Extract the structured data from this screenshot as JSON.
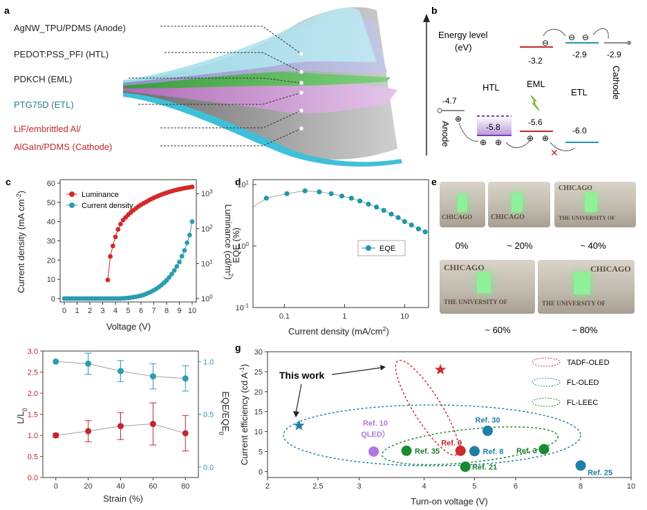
{
  "panels": {
    "a": {
      "letter": "a",
      "layers": [
        {
          "text": "AgNW_TPU/PDMS (Anode)",
          "color": "#222222"
        },
        {
          "text": "PEDOT:PSS_PFI (HTL)",
          "color": "#222222"
        },
        {
          "text": "PDKCH (EML)",
          "color": "#222222"
        },
        {
          "text": "PTG75D (ETL)",
          "color": "#2a7a8a"
        },
        {
          "text": "LiF/embrittled Al/",
          "color": "#c0272d"
        },
        {
          "text": "AlGaIn/PDMS (Cathode)",
          "color": "#c0272d"
        }
      ]
    },
    "b": {
      "letter": "b",
      "title": "Energy level",
      "unit": "(eV)",
      "layer_names": [
        "HTL",
        "EML",
        "ETL",
        "Anode",
        "Cathode"
      ],
      "levels": {
        "anode": "-4.7",
        "htl_lumo": "-5.8",
        "eml_lumo": "-3.2",
        "eml_homo": "-5.6",
        "etl_lumo": "-2.9",
        "etl_homo": "-6.0",
        "cathode": "-2.9"
      },
      "carrier_symbols": {
        "electron": "⊖",
        "hole": "⊕",
        "blocked": "✕"
      }
    },
    "c": {
      "letter": "c",
      "xlabel": "Voltage (V)",
      "ylabel_left": "Current density (mA cm",
      "ylabel_left_sup": "-2",
      "ylabel_left_end": ")",
      "ylabel_right": "Luminance (cd/m",
      "ylabel_right_sup": "2",
      "ylabel_right_end": ")",
      "x_ticks": [
        "0",
        "1",
        "2",
        "3",
        "4",
        "5",
        "6",
        "7",
        "8",
        "9",
        "10"
      ],
      "y_left_ticks": [
        "0",
        "10",
        "20",
        "30",
        "40",
        "50",
        "60"
      ],
      "y_right_ticks": [
        {
          "base": "10",
          "exp": "0"
        },
        {
          "base": "10",
          "exp": "1"
        },
        {
          "base": "10",
          "exp": "2"
        },
        {
          "base": "10",
          "exp": "3"
        }
      ],
      "legend": [
        "Luminance",
        "Current density"
      ]
    },
    "d": {
      "letter": "d",
      "xlabel": "Current density (mA/cm",
      "xlabel_sup": "2",
      "xlabel_end": ")",
      "ylabel": "EQE (%)",
      "x_ticks": [
        "0.1",
        "1",
        "10"
      ],
      "y_ticks": [
        {
          "base": "10",
          "exp": "-1"
        },
        {
          "base": "10",
          "exp": "0"
        },
        {
          "base": "10",
          "exp": "1"
        }
      ],
      "legend": [
        "EQE"
      ]
    },
    "e": {
      "letter": "e",
      "strain_labels": [
        "0%",
        "~ 20%",
        "~ 40%",
        "~ 60%",
        "~ 80%"
      ],
      "photo_text": [
        "CHICAGO",
        "THE UNIVERSITY OF"
      ]
    },
    "f": {
      "xlabel": "Strain (%)",
      "ylabel_left": "L/L",
      "ylabel_left_sub": "0",
      "ylabel_right": "EQE/EQE",
      "ylabel_right_sub": "0",
      "x_ticks": [
        "0",
        "20",
        "40",
        "60",
        "80"
      ],
      "y_left_ticks": [
        "0.0",
        "0.5",
        "1.0",
        "1.5",
        "2.0",
        "2.5",
        "3.0"
      ],
      "y_right_ticks": [
        "0.0",
        "0.5",
        "1.0"
      ]
    },
    "g": {
      "letter": "g",
      "xlabel": "Turn-on voltage (V)",
      "ylabel": "Current efficiency (cd A",
      "ylabel_sup": "-1",
      "ylabel_end": ")",
      "x_ticks": [
        "2",
        "2.5",
        "3",
        "4",
        "5",
        "6",
        "8",
        "10"
      ],
      "y_ticks": [
        "0",
        "5",
        "10",
        "15",
        "20",
        "25",
        "30"
      ],
      "legend": [
        "TADF-OLED",
        "FL-OLED",
        "FL-LEEC"
      ],
      "this_work": "This work",
      "qled_label": [
        "Ref. 10",
        "QLED）"
      ]
    }
  },
  "colors": {
    "luminance": "#d12a2a",
    "current": "#2a9cb0",
    "eqe": "#1f97aa",
    "tadf": "#d12a2a",
    "fl_oled": "#1f7fa8",
    "fl_leec": "#1a8a2e",
    "qled": "#b078e0",
    "htl_level": "#7a3fb0",
    "eml_level": "#c0272d",
    "etl_level": "#1f97aa",
    "cathode_level": "#888888"
  },
  "chart_data": [
    {
      "panel": "c",
      "type": "scatter",
      "series": [
        {
          "name": "Luminance",
          "axis": "right (log, cd/m2)",
          "x": [
            3.4,
            3.6,
            3.8,
            4.0,
            4.2,
            4.4,
            4.6,
            4.8,
            5.0,
            5.2,
            5.4,
            5.6,
            5.8,
            6.0,
            6.2,
            6.4,
            6.6,
            6.8,
            7.0,
            7.2,
            7.4,
            7.6,
            7.8,
            8.0,
            8.2,
            8.4,
            8.6,
            8.8,
            9.0,
            9.2,
            9.4,
            9.6,
            9.8,
            10.0
          ],
          "y": [
            3.4,
            16,
            32,
            58,
            95,
            135,
            175,
            210,
            250,
            290,
            335,
            380,
            430,
            480,
            530,
            580,
            640,
            700,
            760,
            820,
            880,
            940,
            1000,
            1060,
            1120,
            1180,
            1240,
            1290,
            1340,
            1390,
            1440,
            1480,
            1520,
            1560
          ]
        },
        {
          "name": "Current density",
          "axis": "left (mA cm-2)",
          "x": [
            0,
            0.2,
            0.4,
            0.6,
            0.8,
            1.0,
            1.2,
            1.4,
            1.6,
            1.8,
            2.0,
            2.2,
            2.4,
            2.6,
            2.8,
            3.0,
            3.2,
            3.4,
            3.6,
            3.8,
            4.0,
            4.2,
            4.4,
            4.6,
            4.8,
            5.0,
            5.2,
            5.4,
            5.6,
            5.8,
            6.0,
            6.2,
            6.4,
            6.6,
            6.8,
            7.0,
            7.2,
            7.4,
            7.6,
            7.8,
            8.0,
            8.2,
            8.4,
            8.6,
            8.8,
            9.0,
            9.2,
            9.4,
            9.6,
            9.8,
            10.0
          ],
          "y": [
            0,
            0,
            0,
            0,
            0,
            0,
            0,
            0,
            0,
            0,
            0,
            0,
            0,
            0,
            0,
            0,
            0,
            0,
            0,
            0,
            0,
            0,
            0.05,
            0.1,
            0.2,
            0.3,
            0.5,
            0.7,
            0.9,
            1.2,
            1.5,
            1.9,
            2.4,
            3.0,
            3.6,
            4.3,
            5.1,
            6.0,
            7.0,
            8.2,
            9.5,
            11.0,
            12.7,
            14.6,
            16.7,
            19.0,
            22.0,
            25.0,
            29.0,
            33.0,
            40.0
          ]
        }
      ],
      "xlim": [
        0,
        10
      ],
      "ylim_left": [
        0,
        60
      ],
      "ylim_right": [
        1,
        2000
      ]
    },
    {
      "panel": "d",
      "type": "line",
      "series": [
        {
          "name": "EQE",
          "x": [
            0.05,
            0.11,
            0.22,
            0.38,
            0.6,
            0.9,
            1.3,
            1.8,
            2.5,
            3.4,
            4.5,
            6,
            7.8,
            10,
            13,
            17,
            22
          ],
          "y": [
            6.0,
            7.1,
            7.9,
            7.6,
            7.1,
            6.5,
            6.0,
            5.4,
            4.8,
            4.3,
            3.8,
            3.3,
            2.9,
            2.5,
            2.2,
            1.9,
            1.7
          ]
        }
      ],
      "xlim": [
        0.03,
        25
      ],
      "ylim": [
        0.1,
        12
      ],
      "scale": "log-log"
    },
    {
      "panel": "f",
      "type": "scatter",
      "series": [
        {
          "name": "L/L0",
          "x": [
            0,
            20,
            40,
            60,
            80
          ],
          "y": [
            1.0,
            1.1,
            1.22,
            1.27,
            1.05
          ],
          "err": [
            0.05,
            0.25,
            0.32,
            0.5,
            0.42
          ]
        },
        {
          "name": "EQE/EQE0",
          "x": [
            0,
            20,
            40,
            60,
            80
          ],
          "y": [
            1.0,
            0.98,
            0.91,
            0.86,
            0.84
          ],
          "err": [
            0.0,
            0.1,
            0.1,
            0.12,
            0.12
          ]
        }
      ],
      "xlim": [
        -5,
        85
      ],
      "ylim_left": [
        0,
        3
      ],
      "ylim_right": [
        -0.1,
        1.1
      ]
    },
    {
      "panel": "g",
      "type": "scatter",
      "points": [
        {
          "label": "This work",
          "x": 2.3,
          "y": 11.5,
          "group": "FL-OLED",
          "marker": "star"
        },
        {
          "label": "",
          "x": 4.3,
          "y": 25.5,
          "group": "TADF-OLED",
          "marker": "star"
        },
        {
          "label": "Ref. 9",
          "x": 4.7,
          "y": 5.2,
          "group": "TADF-OLED",
          "marker": "circle"
        },
        {
          "label": "Ref. 10",
          "x": 3.2,
          "y": 5.0,
          "group": "QLED",
          "marker": "circle"
        },
        {
          "label": "Ref. 35",
          "x": 3.7,
          "y": 5.2,
          "group": "FL-LEEC",
          "marker": "circle"
        },
        {
          "label": "Ref. 21",
          "x": 4.8,
          "y": 1.2,
          "group": "FL-LEEC",
          "marker": "circle"
        },
        {
          "label": "Ref. 8",
          "x": 5.0,
          "y": 5.1,
          "group": "FL-OLED",
          "marker": "circle"
        },
        {
          "label": "Ref. 30",
          "x": 5.3,
          "y": 10.2,
          "group": "FL-OLED",
          "marker": "circle"
        },
        {
          "label": "Ref. 3",
          "x": 6.8,
          "y": 5.6,
          "group": "FL-LEEC",
          "marker": "circle"
        },
        {
          "label": "Ref. 25",
          "x": 8.0,
          "y": 1.5,
          "group": "FL-OLED",
          "marker": "circle"
        }
      ],
      "xlim": [
        2,
        10
      ],
      "ylim": [
        -2,
        30
      ],
      "scale": "log-x"
    }
  ]
}
